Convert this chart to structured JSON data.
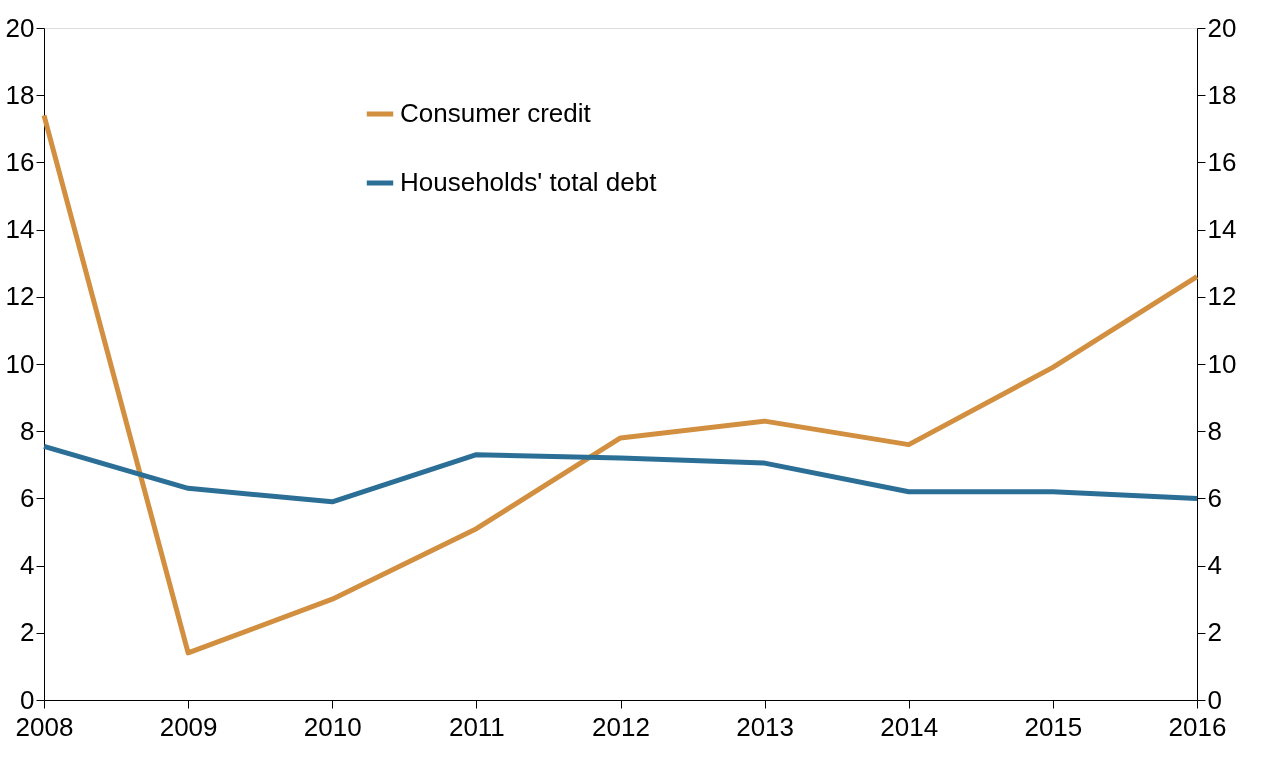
{
  "chart_data": {
    "type": "line",
    "x": [
      2008,
      2009,
      2010,
      2011,
      2012,
      2013,
      2014,
      2015,
      2016
    ],
    "series": [
      {
        "name": "Consumer credit",
        "color": "#d18f3f",
        "values": [
          17.4,
          1.4,
          3.0,
          5.1,
          7.8,
          8.3,
          7.6,
          9.9,
          12.6
        ]
      },
      {
        "name": "Households' total debt",
        "color": "#2b6f96",
        "values": [
          7.55,
          6.3,
          5.9,
          7.3,
          7.2,
          7.05,
          6.2,
          6.2,
          6.0
        ]
      }
    ],
    "xlim": [
      2008,
      2016
    ],
    "xticks": [
      2008,
      2009,
      2010,
      2011,
      2012,
      2013,
      2014,
      2015,
      2016
    ],
    "ylim": [
      0,
      20
    ],
    "yticks": [
      0,
      2,
      4,
      6,
      8,
      10,
      12,
      14,
      16,
      18,
      20
    ],
    "y2lim": [
      0,
      20
    ],
    "y2ticks": [
      0,
      2,
      4,
      6,
      8,
      10,
      12,
      14,
      16,
      18,
      20
    ],
    "grid": false,
    "legend": "top",
    "marker": "none",
    "line_style": "solid"
  }
}
